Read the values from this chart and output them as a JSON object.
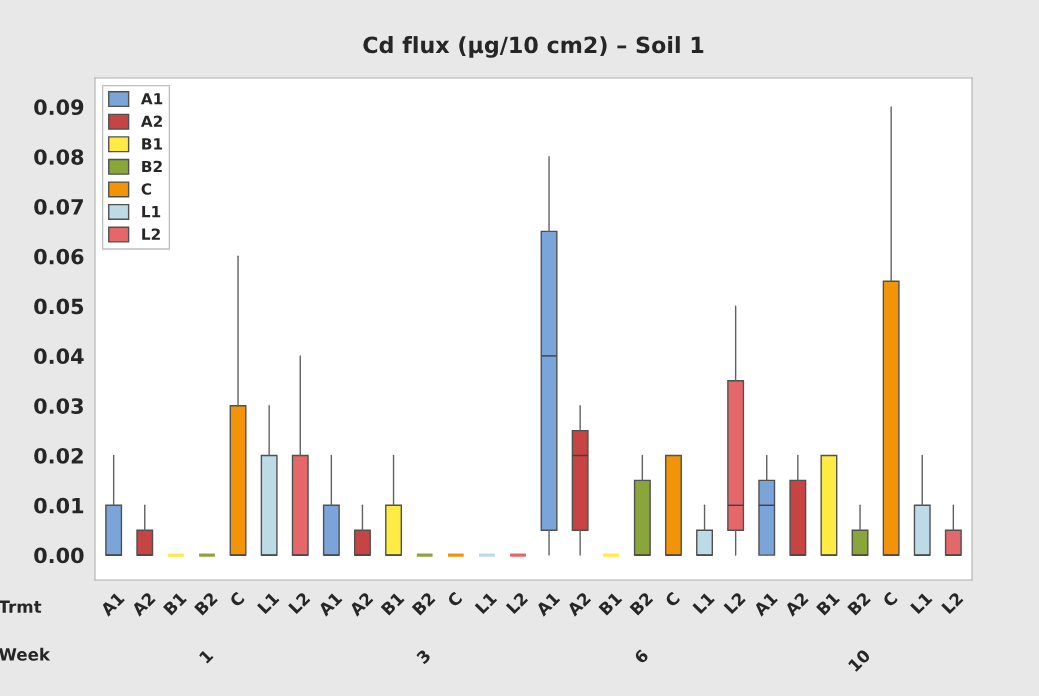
{
  "chart_data": {
    "type": "box",
    "title": "Cd flux (µg/10 cm2) – Soil 1",
    "categories": [
      "A1",
      "A2",
      "B1",
      "B2",
      "C",
      "L1",
      "L2",
      "A1",
      "A2",
      "B1",
      "B2",
      "C",
      "L1",
      "L2",
      "A1",
      "A2",
      "B1",
      "B2",
      "C",
      "L1",
      "L2",
      "A1",
      "A2",
      "B1",
      "B2",
      "C",
      "L1",
      "L2"
    ],
    "series": [
      {
        "name": "A1",
        "color": "#7ba5d8",
        "boxes": [
          {
            "low": 0,
            "q1": 0,
            "median": 0,
            "q3": 0.01,
            "high": 0.02
          },
          null,
          null,
          null,
          null,
          null,
          null,
          {
            "low": 0,
            "q1": 0,
            "median": 0,
            "q3": 0.01,
            "high": 0.02
          },
          null,
          null,
          null,
          null,
          null,
          null,
          {
            "low": 0,
            "q1": 0.005,
            "median": 0.04,
            "q3": 0.065,
            "high": 0.08
          },
          null,
          null,
          null,
          null,
          null,
          null,
          {
            "low": 0,
            "q1": 0,
            "median": 0.01,
            "q3": 0.015,
            "high": 0.02
          },
          null,
          null,
          null,
          null,
          null,
          null
        ]
      },
      {
        "name": "A2",
        "color": "#c64444",
        "boxes": [
          null,
          {
            "low": 0,
            "q1": 0,
            "median": 0,
            "q3": 0.005,
            "high": 0.01
          },
          null,
          null,
          null,
          null,
          null,
          null,
          {
            "low": 0,
            "q1": 0,
            "median": 0,
            "q3": 0.005,
            "high": 0.01
          },
          null,
          null,
          null,
          null,
          null,
          null,
          {
            "low": 0,
            "q1": 0.005,
            "median": 0.02,
            "q3": 0.025,
            "high": 0.03
          },
          null,
          null,
          null,
          null,
          null,
          null,
          {
            "low": 0,
            "q1": 0,
            "median": 0,
            "q3": 0.015,
            "high": 0.02
          },
          null,
          null,
          null,
          null,
          null
        ]
      },
      {
        "name": "B1",
        "color": "#ffeb44",
        "boxes": [
          null,
          null,
          {
            "low": 0,
            "q1": 0,
            "median": 0,
            "q3": 0,
            "high": 0
          },
          null,
          null,
          null,
          null,
          null,
          null,
          {
            "low": 0,
            "q1": 0,
            "median": 0,
            "q3": 0.01,
            "high": 0.02
          },
          null,
          null,
          null,
          null,
          null,
          null,
          {
            "low": 0,
            "q1": 0,
            "median": 0,
            "q3": 0,
            "high": 0
          },
          null,
          null,
          null,
          null,
          null,
          null,
          {
            "low": 0,
            "q1": 0,
            "median": 0,
            "q3": 0.02,
            "high": 0.02
          },
          null,
          null,
          null,
          null
        ]
      },
      {
        "name": "B2",
        "color": "#8aa63a",
        "boxes": [
          null,
          null,
          null,
          {
            "low": 0,
            "q1": 0,
            "median": 0,
            "q3": 0,
            "high": 0
          },
          null,
          null,
          null,
          null,
          null,
          null,
          {
            "low": 0,
            "q1": 0,
            "median": 0,
            "q3": 0,
            "high": 0
          },
          null,
          null,
          null,
          null,
          null,
          null,
          {
            "low": 0,
            "q1": 0,
            "median": 0,
            "q3": 0.015,
            "high": 0.02
          },
          null,
          null,
          null,
          null,
          null,
          null,
          {
            "low": 0,
            "q1": 0,
            "median": 0,
            "q3": 0.005,
            "high": 0.01
          },
          null,
          null,
          null
        ]
      },
      {
        "name": "C",
        "color": "#f39408",
        "boxes": [
          null,
          null,
          null,
          null,
          {
            "low": 0,
            "q1": 0,
            "median": 0,
            "q3": 0.03,
            "high": 0.06
          },
          null,
          null,
          null,
          null,
          null,
          null,
          {
            "low": 0,
            "q1": 0,
            "median": 0,
            "q3": 0,
            "high": 0
          },
          null,
          null,
          null,
          null,
          null,
          null,
          {
            "low": 0,
            "q1": 0,
            "median": 0,
            "q3": 0.02,
            "high": 0.02
          },
          null,
          null,
          null,
          null,
          null,
          null,
          {
            "low": 0,
            "q1": 0,
            "median": 0,
            "q3": 0.055,
            "high": 0.09
          },
          null,
          null
        ]
      },
      {
        "name": "L1",
        "color": "#bddbe6",
        "boxes": [
          null,
          null,
          null,
          null,
          null,
          {
            "low": 0,
            "q1": 0,
            "median": 0,
            "q3": 0.02,
            "high": 0.03
          },
          null,
          null,
          null,
          null,
          null,
          null,
          {
            "low": 0,
            "q1": 0,
            "median": 0,
            "q3": 0,
            "high": 0
          },
          null,
          null,
          null,
          null,
          null,
          null,
          {
            "low": 0,
            "q1": 0,
            "median": 0,
            "q3": 0.005,
            "high": 0.01
          },
          null,
          null,
          null,
          null,
          null,
          null,
          {
            "low": 0,
            "q1": 0,
            "median": 0,
            "q3": 0.01,
            "high": 0.02
          },
          null
        ]
      },
      {
        "name": "L2",
        "color": "#e4676a",
        "boxes": [
          null,
          null,
          null,
          null,
          null,
          null,
          {
            "low": 0,
            "q1": 0,
            "median": 0,
            "q3": 0.02,
            "high": 0.04
          },
          null,
          null,
          null,
          null,
          null,
          null,
          {
            "low": 0,
            "q1": 0,
            "median": 0,
            "q3": 0,
            "high": 0
          },
          null,
          null,
          null,
          null,
          null,
          null,
          {
            "low": 0,
            "q1": 0.005,
            "median": 0.01,
            "q3": 0.035,
            "high": 0.05
          },
          null,
          null,
          null,
          null,
          null,
          null,
          {
            "low": 0,
            "q1": 0,
            "median": 0,
            "q3": 0.005,
            "high": 0.01
          }
        ]
      }
    ],
    "ylim": [
      -0.005,
      0.0958
    ],
    "yticks": [
      {
        "value": 0,
        "label": "0.00"
      },
      {
        "value": 0.01,
        "label": "0.01"
      },
      {
        "value": 0.02,
        "label": "0.02"
      },
      {
        "value": 0.03,
        "label": "0.03"
      },
      {
        "value": 0.04,
        "label": "0.04"
      },
      {
        "value": 0.05,
        "label": "0.05"
      },
      {
        "value": 0.06,
        "label": "0.06"
      },
      {
        "value": 0.07,
        "label": "0.07"
      },
      {
        "value": 0.08,
        "label": "0.08"
      },
      {
        "value": 0.09,
        "label": "0.09"
      }
    ],
    "annotations": [
      "Trmt",
      "Week",
      "1",
      "3",
      "6",
      "10"
    ],
    "grid": false,
    "legend": "top left"
  }
}
